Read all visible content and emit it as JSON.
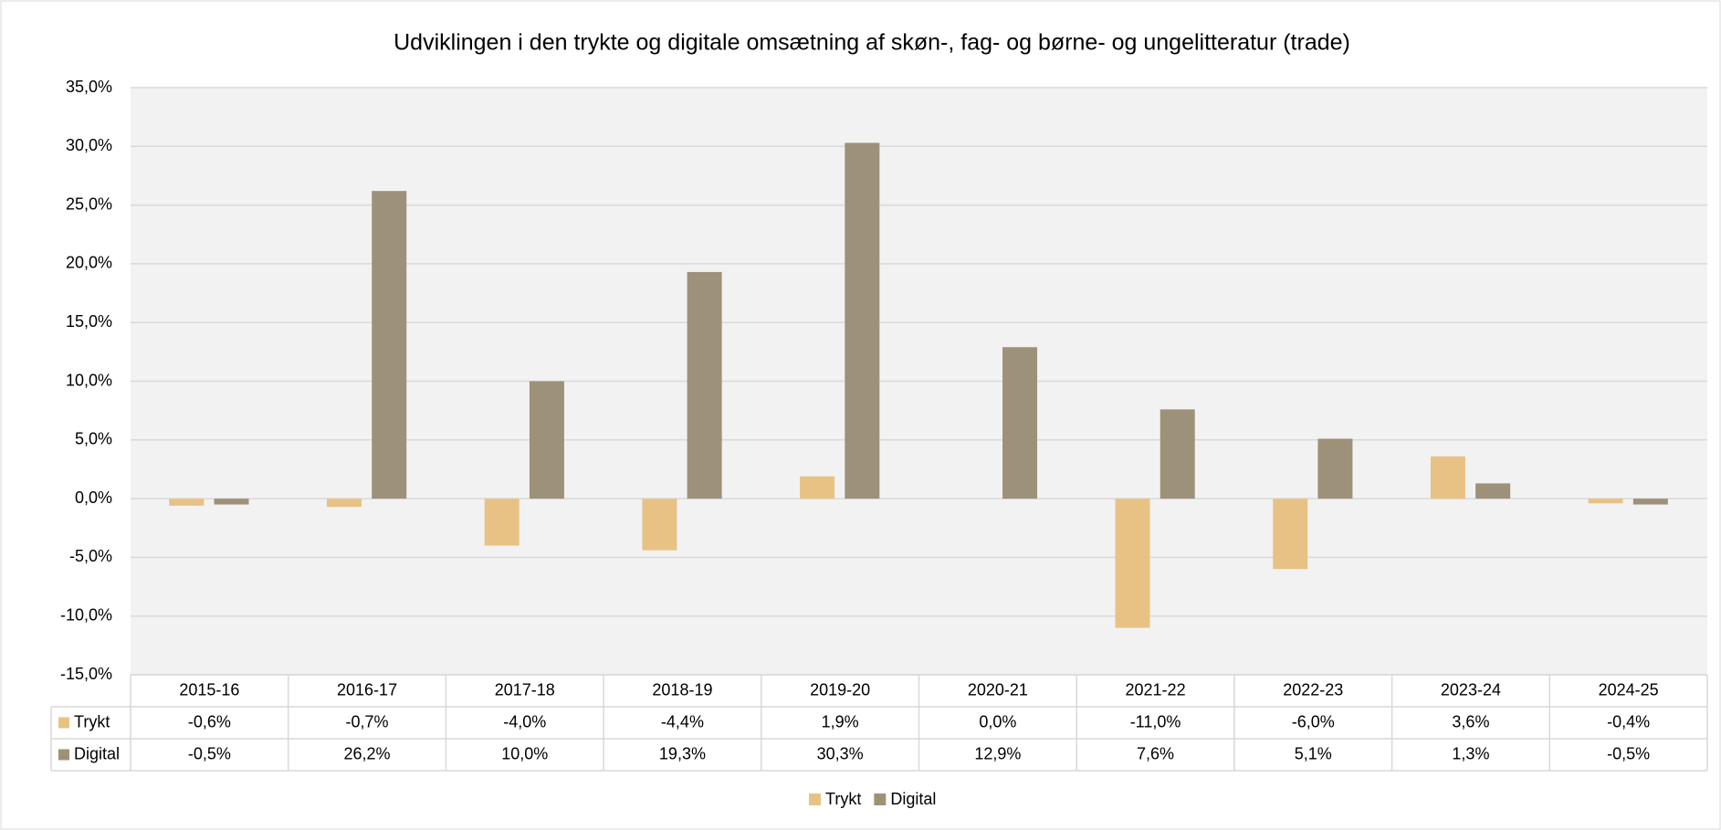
{
  "chart_data": {
    "type": "bar",
    "title": "Udviklingen i den trykte og digitale omsætning af skøn-, fag- og børne- og ungelitteratur (trade)",
    "categories": [
      "2015-16",
      "2016-17",
      "2017-18",
      "2018-19",
      "2019-20",
      "2020-21",
      "2021-22",
      "2022-23",
      "2023-24",
      "2024-25"
    ],
    "series": [
      {
        "name": "Trykt",
        "color": "#e8c284",
        "values": [
          -0.6,
          -0.7,
          -4.0,
          -4.4,
          1.9,
          0.0,
          -11.0,
          -6.0,
          3.6,
          -0.4
        ],
        "value_labels": [
          "-0,6%",
          "-0,7%",
          "-4,0%",
          "-4,4%",
          "1,9%",
          "0,0%",
          "-11,0%",
          "-6,0%",
          "3,6%",
          "-0,4%"
        ]
      },
      {
        "name": "Digital",
        "color": "#9e917a",
        "values": [
          -0.5,
          26.2,
          10.0,
          19.3,
          30.3,
          12.9,
          7.6,
          5.1,
          1.3,
          -0.5
        ],
        "value_labels": [
          "-0,5%",
          "26,2%",
          "10,0%",
          "19,3%",
          "30,3%",
          "12,9%",
          "7,6%",
          "5,1%",
          "1,3%",
          "-0,5%"
        ]
      }
    ],
    "ylim": [
      -15,
      35
    ],
    "yticks": [
      {
        "value": -15,
        "label": "-15,0%"
      },
      {
        "value": -10,
        "label": "-10,0%"
      },
      {
        "value": -5,
        "label": "-5,0%"
      },
      {
        "value": 0,
        "label": "0,0%"
      },
      {
        "value": 5,
        "label": "5,0%"
      },
      {
        "value": 10,
        "label": "10,0%"
      },
      {
        "value": 15,
        "label": "15,0%"
      },
      {
        "value": 20,
        "label": "20,0%"
      },
      {
        "value": 25,
        "label": "25,0%"
      },
      {
        "value": 30,
        "label": "30,0%"
      },
      {
        "value": 35,
        "label": "35,0%"
      }
    ],
    "grid": true,
    "legend": "bottom"
  }
}
